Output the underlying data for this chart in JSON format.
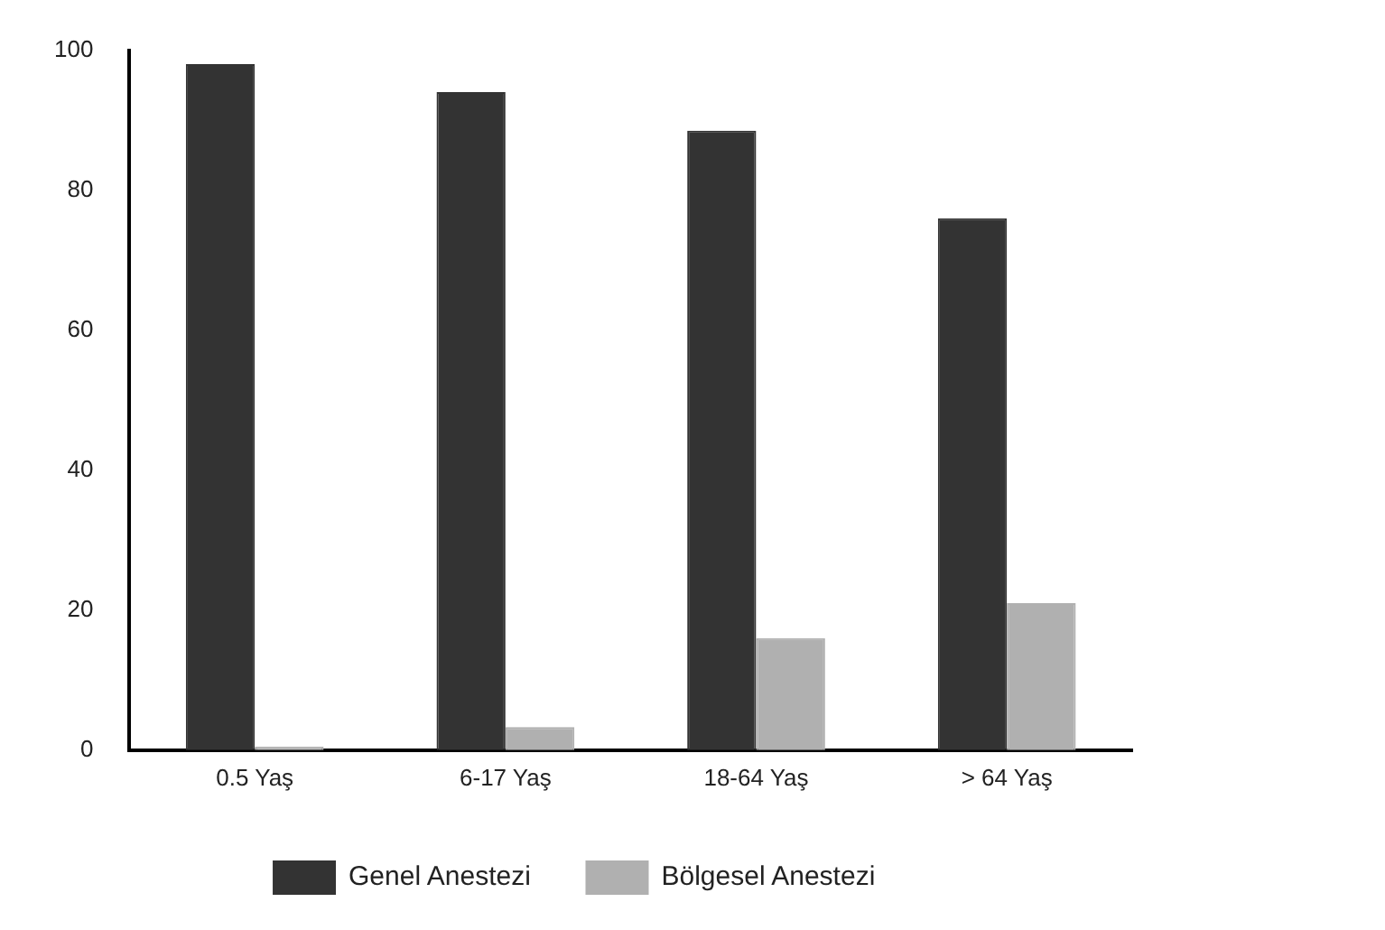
{
  "chart_data": {
    "type": "bar",
    "categories": [
      "0.5 Yaş",
      "6-17 Yaş",
      "18-64 Yaş",
      "> 64 Yaş"
    ],
    "series": [
      {
        "name": "Genel Anestezi",
        "color": "#333333",
        "values": [
          98,
          94,
          88.5,
          76
        ]
      },
      {
        "name": "Bölgesel Anestezi",
        "color": "#b0b0b0",
        "values": [
          0.5,
          3.3,
          16,
          21
        ]
      }
    ],
    "ylim": [
      0,
      100
    ],
    "yticks": [
      0,
      20,
      40,
      60,
      80,
      100
    ],
    "grid": false,
    "legend": "bottom"
  }
}
